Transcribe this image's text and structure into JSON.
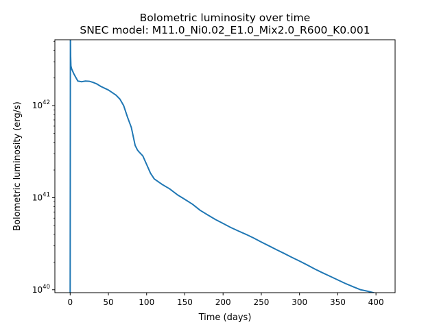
{
  "chart_data": {
    "type": "line",
    "title": "Bolometric luminosity over time",
    "subtitle": "SNEC model: M11.0_Ni0.02_E1.0_Mix2.0_R600_K0.001",
    "xlabel": "Time (days)",
    "ylabel": "Bolometric luminosity (erg/s)",
    "xlim": [
      -20,
      425
    ],
    "ylim": [
      9.3e+39,
      5.2e+42
    ],
    "yscale": "log",
    "grid": false,
    "x_ticks": [
      0,
      50,
      100,
      150,
      200,
      250,
      300,
      350,
      400
    ],
    "x_tick_labels": [
      "0",
      "50",
      "100",
      "150",
      "200",
      "250",
      "300",
      "350",
      "400"
    ],
    "y_ticks": [
      1e+40,
      1e+41,
      1e+42
    ],
    "y_tick_labels": [
      {
        "base": "10",
        "exp": "40"
      },
      {
        "base": "10",
        "exp": "41"
      },
      {
        "base": "10",
        "exp": "42"
      }
    ],
    "line_color": "#1f77b4",
    "series": [
      {
        "x": [
          0,
          0.3,
          0.6,
          1,
          2,
          5,
          10,
          15,
          20,
          25,
          30,
          35,
          40,
          50,
          60,
          65,
          70,
          75,
          80,
          85,
          88,
          90,
          95,
          100,
          105,
          110,
          120,
          130,
          140,
          150,
          160,
          170,
          180,
          190,
          200,
          210,
          220,
          230,
          240,
          250,
          260,
          270,
          280,
          290,
          300,
          310,
          320,
          330,
          340,
          350,
          360,
          370,
          380,
          390,
          400,
          405
        ],
        "y": [
          9.3e+39,
          6e+42,
          3.5e+42,
          2.7e+42,
          2.5e+42,
          2.2e+42,
          1.85e+42,
          1.82e+42,
          1.85e+42,
          1.84e+42,
          1.79e+42,
          1.72e+42,
          1.62e+42,
          1.48e+42,
          1.3e+42,
          1.18e+42,
          1e+42,
          7.5e+41,
          5.8e+41,
          3.7e+41,
          3.3e+41,
          3.15e+41,
          2.85e+41,
          2.3e+41,
          1.85e+41,
          1.6e+41,
          1.4e+41,
          1.25e+41,
          1.08e+41,
          9.6e+40,
          8.5e+40,
          7.3e+40,
          6.5e+40,
          5.8e+40,
          5.25e+40,
          4.75e+40,
          4.35e+40,
          4e+40,
          3.65e+40,
          3.3e+40,
          3e+40,
          2.72e+40,
          2.48e+40,
          2.25e+40,
          2.05e+40,
          1.86e+40,
          1.68e+40,
          1.53e+40,
          1.4e+40,
          1.28e+40,
          1.17e+40,
          1.08e+40,
          1e+40,
          9.6e+39,
          9.15e+39,
          9e+39
        ]
      }
    ]
  }
}
